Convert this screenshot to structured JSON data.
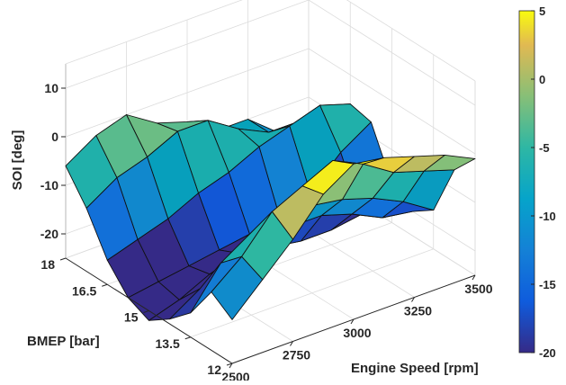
{
  "chart_data": {
    "type": "surface",
    "title": "",
    "xlabel": "Engine Speed [rpm]",
    "ylabel": "BMEP [bar]",
    "zlabel": "SOI [deg]",
    "x": [
      2500,
      2625,
      2750,
      2875,
      3000,
      3125,
      3250,
      3375,
      3500
    ],
    "y": [
      12,
      12.75,
      13.5,
      14.25,
      15,
      15.75,
      16.5,
      17.25,
      18
    ],
    "xlim": [
      2500,
      3500
    ],
    "ylim": [
      12,
      18
    ],
    "zlim": [
      -25,
      15
    ],
    "x_ticks": [
      "2500",
      "2750",
      "3000",
      "3250",
      "3500"
    ],
    "y_ticks": [
      "12",
      "13.5",
      "15",
      "16.5",
      "18"
    ],
    "z_ticks": [
      "-20",
      "-10",
      "0",
      "10"
    ],
    "z_tick_values": [
      -20,
      -10,
      0,
      10
    ],
    "grid": true,
    "colormap": "parula",
    "colorbar": {
      "position": "right",
      "range": [
        -20,
        5
      ],
      "tick_values": [
        5,
        0,
        -5,
        -10,
        -15,
        -20
      ],
      "ticks": [
        "5",
        "0",
        "-5",
        "-10",
        "-15",
        "-20"
      ]
    },
    "z": [
      [
        -16,
        -10,
        -4,
        3,
        7,
        6,
        4,
        2,
        -1
      ],
      [
        -13,
        -8,
        -1,
        2,
        5,
        2,
        -2,
        -4,
        -6
      ],
      [
        -20,
        -12,
        -8,
        -5,
        -7,
        -8,
        -10,
        -13,
        -17
      ],
      [
        -24,
        -20,
        -18,
        -14,
        -14,
        -14,
        -16,
        -19,
        -20
      ],
      [
        -27,
        -25,
        -22,
        -20,
        -21,
        -22,
        -22,
        -21,
        -17
      ],
      [
        -25,
        -24,
        -23,
        -22,
        -21,
        -20,
        -17,
        -11,
        -7
      ],
      [
        -20,
        -18,
        -16,
        -13,
        -11,
        -8,
        -6,
        -4,
        -6
      ],
      [
        -12,
        -8,
        -6,
        -3,
        -3,
        -7,
        -10,
        -10,
        -12
      ],
      [
        -6,
        -2,
        0,
        -4,
        -6,
        -10,
        -10,
        -15,
        -18
      ]
    ]
  }
}
